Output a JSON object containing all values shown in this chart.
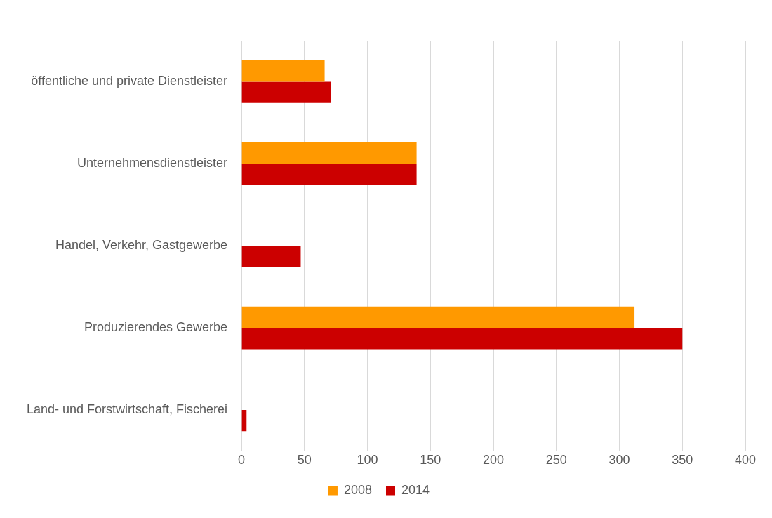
{
  "chart_data": {
    "type": "bar",
    "orientation": "horizontal",
    "categories": [
      "öffentliche und private Dienstleister",
      "Unternehmensdienstleister",
      "Handel, Verkehr, Gastgewerbe",
      "Produzierendes Gewerbe",
      "Land- und Forstwirtschaft, Fischerei"
    ],
    "series": [
      {
        "name": "2008",
        "color": "#ff9900",
        "values": [
          66,
          139,
          null,
          312,
          null
        ]
      },
      {
        "name": "2014",
        "color": "#cc0000",
        "values": [
          71,
          139,
          47,
          350,
          4
        ]
      }
    ],
    "xlim": [
      0,
      400
    ],
    "xticks": [
      0,
      50,
      100,
      150,
      200,
      250,
      300,
      350,
      400
    ],
    "grid": "x",
    "legend": "bottom"
  }
}
